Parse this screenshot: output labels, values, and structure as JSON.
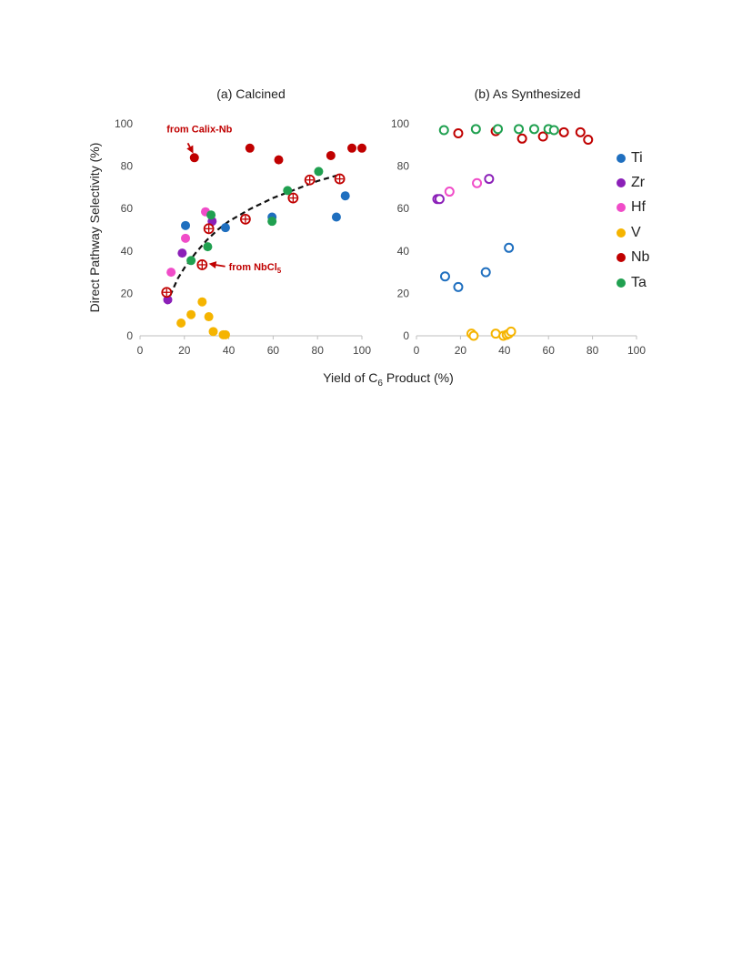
{
  "figure": {
    "ylabel": "Direct Pathway Selectivity (%)",
    "xlabel_main": "Yield of C",
    "xlabel_sub": "6",
    "xlabel_tail": " Product (%)"
  },
  "legend": [
    {
      "label": "Ti",
      "color": "#1F6FBF"
    },
    {
      "label": "Zr",
      "color": "#8B20B8"
    },
    {
      "label": "Hf",
      "color": "#F04CC8"
    },
    {
      "label": "V",
      "color": "#F5B400"
    },
    {
      "label": "Nb",
      "color": "#C00000"
    },
    {
      "label": "Ta",
      "color": "#20A050"
    }
  ],
  "chart_data": [
    {
      "type": "scatter",
      "title": "(a) Calcined",
      "xlabel": "Yield of C6 Product (%)",
      "ylabel": "Direct Pathway Selectivity (%)",
      "xlim": [
        0,
        100
      ],
      "ylim": [
        0,
        100
      ],
      "xticks": [
        0,
        20,
        40,
        60,
        80,
        100
      ],
      "yticks": [
        0,
        20,
        40,
        60,
        80,
        100
      ],
      "grid": false,
      "fit_curve": [
        [
          12,
          15
        ],
        [
          14,
          20
        ],
        [
          17,
          27
        ],
        [
          20,
          32
        ],
        [
          25,
          39
        ],
        [
          30,
          45
        ],
        [
          35,
          50
        ],
        [
          40,
          54
        ],
        [
          50,
          60
        ],
        [
          60,
          65
        ],
        [
          70,
          69
        ],
        [
          80,
          73
        ],
        [
          90,
          76
        ]
      ],
      "annotations": [
        {
          "text": "from Calix-Nb",
          "x": 12,
          "y": 96,
          "arrow_to": [
            24,
            86
          ]
        },
        {
          "text": "from NbCl",
          "sub": "5",
          "x": 40,
          "y": 31,
          "arrow_to": [
            31,
            34
          ]
        }
      ],
      "series": [
        {
          "name": "Ti",
          "marker": "filled",
          "points": [
            [
              20.5,
              52
            ],
            [
              38.5,
              51
            ],
            [
              59.5,
              56
            ],
            [
              88.5,
              56
            ],
            [
              92.5,
              66
            ]
          ]
        },
        {
          "name": "Zr",
          "marker": "filled",
          "points": [
            [
              12.5,
              17
            ],
            [
              19,
              39
            ],
            [
              32.5,
              54
            ]
          ]
        },
        {
          "name": "Hf",
          "marker": "filled",
          "points": [
            [
              14,
              30
            ],
            [
              20.5,
              46
            ],
            [
              29.5,
              58.5
            ]
          ]
        },
        {
          "name": "V",
          "marker": "filled",
          "points": [
            [
              18.5,
              6
            ],
            [
              23,
              10
            ],
            [
              28,
              16
            ],
            [
              31,
              9
            ],
            [
              33,
              2
            ],
            [
              37.5,
              0.5
            ],
            [
              38.5,
              0.5
            ]
          ]
        },
        {
          "name": "Nb",
          "marker": "filled",
          "points": [
            [
              24.5,
              84
            ],
            [
              49.5,
              88.5
            ],
            [
              62.5,
              83
            ],
            [
              86,
              85
            ],
            [
              95.5,
              88.5
            ],
            [
              100,
              88.5
            ]
          ]
        },
        {
          "name": "Nb",
          "marker": "crosshair",
          "points": [
            [
              12,
              20.5
            ],
            [
              28,
              33.5
            ],
            [
              31,
              50.5
            ],
            [
              47.5,
              55
            ],
            [
              69,
              65
            ],
            [
              76.5,
              73.5
            ],
            [
              90,
              74
            ]
          ]
        },
        {
          "name": "Ta",
          "marker": "filled",
          "points": [
            [
              23,
              35.5
            ],
            [
              30.5,
              42
            ],
            [
              32,
              57
            ],
            [
              66.5,
              68.5
            ],
            [
              80.5,
              77.5
            ],
            [
              59.5,
              54
            ]
          ]
        }
      ]
    },
    {
      "type": "scatter",
      "title": "(b) As Synthesized",
      "xlim": [
        0,
        100
      ],
      "ylim": [
        0,
        100
      ],
      "xticks": [
        0,
        20,
        40,
        60,
        80,
        100
      ],
      "yticks": [
        0,
        20,
        40,
        60,
        80,
        100
      ],
      "grid": false,
      "series": [
        {
          "name": "Ti",
          "marker": "open",
          "points": [
            [
              13,
              28
            ],
            [
              19,
              23
            ],
            [
              31.5,
              30
            ],
            [
              42,
              41.5
            ]
          ]
        },
        {
          "name": "Zr",
          "marker": "open",
          "points": [
            [
              9.5,
              64.5
            ],
            [
              10.5,
              64.5
            ],
            [
              33,
              74
            ]
          ]
        },
        {
          "name": "Hf",
          "marker": "open",
          "points": [
            [
              15,
              68
            ],
            [
              27.5,
              72
            ]
          ]
        },
        {
          "name": "V",
          "marker": "open",
          "points": [
            [
              25,
              1
            ],
            [
              26,
              0
            ],
            [
              36,
              1
            ],
            [
              39.5,
              0
            ],
            [
              41,
              0.5
            ],
            [
              42,
              1
            ],
            [
              43,
              2
            ]
          ]
        },
        {
          "name": "Nb",
          "marker": "open",
          "points": [
            [
              19,
              95.5
            ],
            [
              36,
              96.5
            ],
            [
              48,
              93
            ],
            [
              57.5,
              94
            ],
            [
              67,
              96
            ],
            [
              74.5,
              96
            ],
            [
              78,
              92.5
            ]
          ]
        },
        {
          "name": "Ta",
          "marker": "open",
          "points": [
            [
              12.5,
              97
            ],
            [
              27,
              97.5
            ],
            [
              37,
              97.5
            ],
            [
              46.5,
              97.5
            ],
            [
              53.5,
              97.5
            ],
            [
              60,
              97.5
            ],
            [
              62.5,
              97
            ]
          ]
        }
      ]
    }
  ]
}
